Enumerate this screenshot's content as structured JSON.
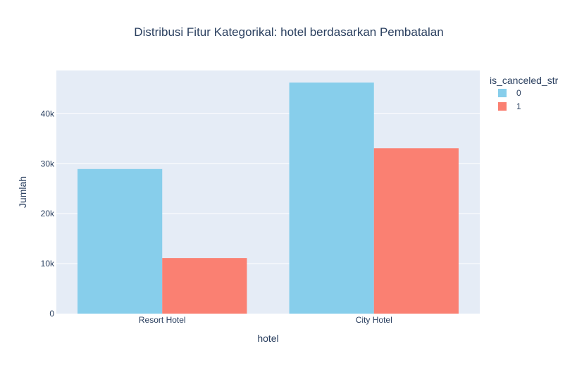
{
  "chart_data": {
    "type": "bar",
    "title": "Distribusi Fitur Kategorikal: hotel berdasarkan Pembatalan",
    "xlabel": "hotel",
    "ylabel": "Jumlah",
    "categories": [
      "Resort Hotel",
      "City Hotel"
    ],
    "series": [
      {
        "name": "0",
        "values": [
          28938,
          46228
        ],
        "color": "#87ceeb"
      },
      {
        "name": "1",
        "values": [
          11122,
          33102
        ],
        "color": "#fa8072"
      }
    ],
    "ylim": [
      0,
      48656
    ],
    "yticks": [
      0,
      10000,
      20000,
      30000,
      40000
    ],
    "ytick_labels": [
      "0",
      "10k",
      "20k",
      "30k",
      "40k"
    ],
    "legend": {
      "title": "is_canceled_str",
      "placement": "top-right outside"
    },
    "grid": true,
    "plot_bgcolor": "#e5ecf6",
    "grid_color": "#ffffff"
  }
}
